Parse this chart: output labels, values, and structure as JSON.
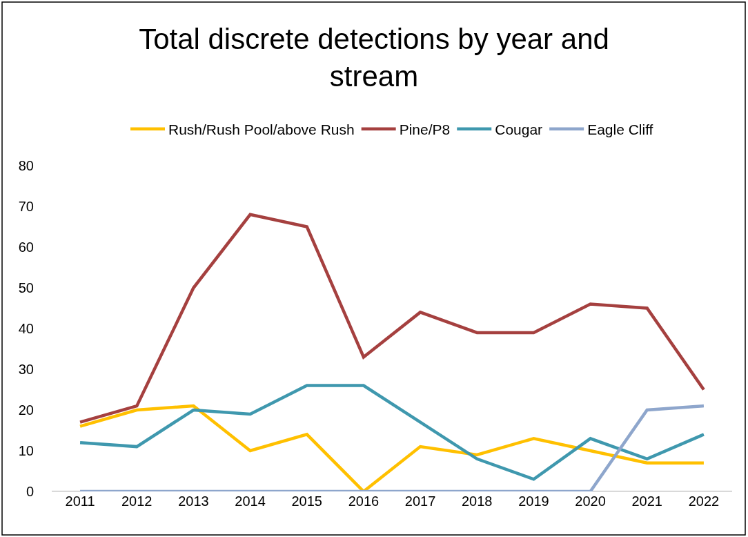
{
  "chart_data": {
    "type": "line",
    "title": "Total discrete detections by year and stream",
    "categories": [
      "2011",
      "2012",
      "2013",
      "2014",
      "2015",
      "2016",
      "2017",
      "2018",
      "2019",
      "2020",
      "2021",
      "2022"
    ],
    "series": [
      {
        "name": "Rush/Rush Pool/above Rush",
        "color": "#ffc000",
        "values": [
          16,
          20,
          21,
          10,
          14,
          0,
          11,
          9,
          13,
          10,
          7,
          7
        ]
      },
      {
        "name": "Pine/P8",
        "color": "#a5403f",
        "values": [
          17,
          21,
          50,
          68,
          65,
          33,
          44,
          39,
          39,
          46,
          45,
          25
        ]
      },
      {
        "name": "Cougar",
        "color": "#3f98ae",
        "values": [
          12,
          11,
          20,
          19,
          26,
          26,
          17,
          8,
          3,
          13,
          8,
          14
        ]
      },
      {
        "name": "Eagle Cliff",
        "color": "#8ea6cc",
        "values": [
          0,
          0,
          0,
          0,
          0,
          0,
          0,
          0,
          0,
          0,
          20,
          21
        ]
      }
    ],
    "ylim": [
      0,
      80
    ],
    "yticks": [
      0,
      10,
      20,
      30,
      40,
      50,
      60,
      70,
      80
    ],
    "grid": false,
    "legend": "top",
    "marker": "none",
    "line_style": "solid"
  }
}
